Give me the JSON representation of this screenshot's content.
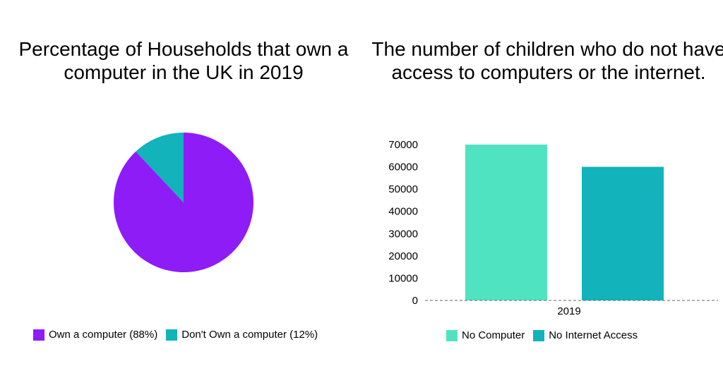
{
  "chart_data": [
    {
      "type": "pie",
      "title": "Percentage of Households that own a computer in the UK in 2019",
      "slices": [
        {
          "label": "Own a computer (88%)",
          "value": 88,
          "color": "#8e1cf6"
        },
        {
          "label": "Don't Own a computer (12%)",
          "value": 12,
          "color": "#12b3bb"
        }
      ],
      "legend_position": "bottom"
    },
    {
      "type": "bar",
      "title": "The number of children who do not have access to computers or the internet.",
      "categories": [
        "2019"
      ],
      "series": [
        {
          "name": "No Computer",
          "values": [
            70000
          ],
          "color": "#50e3c2"
        },
        {
          "name": "No Internet Access",
          "values": [
            60000
          ],
          "color": "#12b3bb"
        }
      ],
      "yticks": [
        "0",
        "10000",
        "20000",
        "30000",
        "40000",
        "50000",
        "60000",
        "70000"
      ],
      "ylim": [
        0,
        70000
      ],
      "grid": false,
      "legend_position": "bottom"
    }
  ]
}
